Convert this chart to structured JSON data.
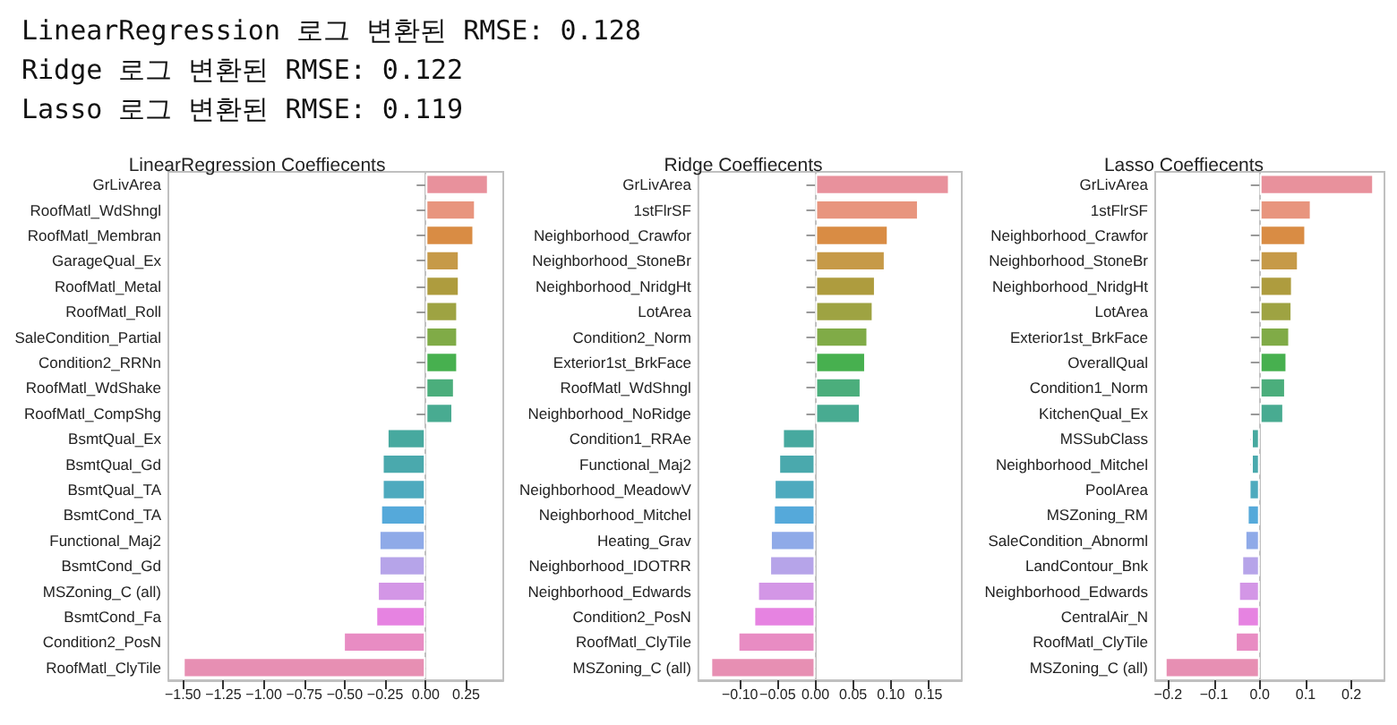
{
  "chart_data": [
    {
      "type": "other",
      "annotations": [
        "LinearRegression 로그 변환된 RMSE: 0.128",
        "Ridge 로그 변환된 RMSE: 0.122",
        "Lasso 로그 변환된 RMSE: 0.119"
      ]
    },
    {
      "type": "bar",
      "orientation": "horizontal",
      "title": "LinearRegression Coeffiecents",
      "categories": [
        "GrLivArea",
        "RoofMatl_WdShngl",
        "RoofMatl_Membran",
        "GarageQual_Ex",
        "RoofMatl_Metal",
        "RoofMatl_Roll",
        "SaleCondition_Partial",
        "Condition2_RRNn",
        "RoofMatl_WdShake",
        "RoofMatl_CompShg",
        "BsmtQual_Ex",
        "BsmtQual_Gd",
        "BsmtQual_TA",
        "BsmtCond_TA",
        "Functional_Maj2",
        "BsmtCond_Gd",
        "MSZoning_C (all)",
        "BsmtCond_Fa",
        "Condition2_PosN",
        "RoofMatl_ClyTile"
      ],
      "values": [
        0.39,
        0.31,
        0.3,
        0.21,
        0.21,
        0.2,
        0.2,
        0.2,
        0.18,
        0.17,
        -0.24,
        -0.27,
        -0.27,
        -0.28,
        -0.29,
        -0.29,
        -0.3,
        -0.31,
        -0.51,
        -1.5
      ],
      "colors": [
        "#e8919c",
        "#e8957e",
        "#d98c44",
        "#c69a48",
        "#ae9c3e",
        "#9ea342",
        "#80ab47",
        "#47b04f",
        "#4bae7c",
        "#48ab91",
        "#47a99f",
        "#4aa9ad",
        "#4eaabe",
        "#55a9da",
        "#8faae8",
        "#b6a4e9",
        "#d396e6",
        "#e683e1",
        "#e88cc3",
        "#e78fb3"
      ],
      "xlim": [
        -1.59,
        0.48
      ],
      "xticks": [
        {
          "value": -1.5,
          "label": "−1.50"
        },
        {
          "value": -1.25,
          "label": "−1.25"
        },
        {
          "value": -1,
          "label": "−1.00"
        },
        {
          "value": -0.75,
          "label": "−0.75"
        },
        {
          "value": -0.5,
          "label": "−0.50"
        },
        {
          "value": -0.25,
          "label": "−0.25"
        },
        {
          "value": 0,
          "label": "0.00"
        },
        {
          "value": 0.25,
          "label": "0.25"
        }
      ]
    },
    {
      "type": "bar",
      "orientation": "horizontal",
      "title": "Ridge Coeffiecents",
      "categories": [
        "GrLivArea",
        "1stFlrSF",
        "Neighborhood_Crawfor",
        "Neighborhood_StoneBr",
        "Neighborhood_NridgHt",
        "LotArea",
        "Condition2_Norm",
        "Exterior1st_BrkFace",
        "RoofMatl_WdShngl",
        "Neighborhood_NoRidge",
        "Condition1_RRAe",
        "Functional_Maj2",
        "Neighborhood_MeadowV",
        "Neighborhood_Mitchel",
        "Heating_Grav",
        "Neighborhood_IDOTRR",
        "Neighborhood_Edwards",
        "Condition2_PosN",
        "RoofMatl_ClyTile",
        "MSZoning_C (all)"
      ],
      "values": [
        0.178,
        0.137,
        0.097,
        0.093,
        0.08,
        0.077,
        0.07,
        0.067,
        0.061,
        0.06,
        -0.044,
        -0.049,
        -0.055,
        -0.056,
        -0.06,
        -0.061,
        -0.077,
        -0.082,
        -0.103,
        -0.139
      ],
      "colors": [
        "#e8919c",
        "#e8957e",
        "#d98c44",
        "#c69a48",
        "#ae9c3e",
        "#9ea342",
        "#80ab47",
        "#47b04f",
        "#4bae7c",
        "#48ab91",
        "#47a99f",
        "#4aa9ad",
        "#4eaabe",
        "#55a9da",
        "#8faae8",
        "#b6a4e9",
        "#d396e6",
        "#e683e1",
        "#e88cc3",
        "#e78fb3"
      ],
      "xlim": [
        -0.155,
        0.194
      ],
      "xticks": [
        {
          "value": -0.1,
          "label": "−0.10"
        },
        {
          "value": -0.05,
          "label": "−0.05"
        },
        {
          "value": 0,
          "label": "0.00"
        },
        {
          "value": 0.05,
          "label": "0.05"
        },
        {
          "value": 0.1,
          "label": "0.10"
        },
        {
          "value": 0.15,
          "label": "0.15"
        }
      ]
    },
    {
      "type": "bar",
      "orientation": "horizontal",
      "title": "Lasso Coeffiecents",
      "categories": [
        "GrLivArea",
        "1stFlrSF",
        "Neighborhood_Crawfor",
        "Neighborhood_StoneBr",
        "Neighborhood_NridgHt",
        "LotArea",
        "Exterior1st_BrkFace",
        "OverallQual",
        "Condition1_Norm",
        "KitchenQual_Ex",
        "MSSubClass",
        "Neighborhood_Mitchel",
        "PoolArea",
        "MSZoning_RM",
        "SaleCondition_Abnorml",
        "LandContour_Bnk",
        "Neighborhood_Edwards",
        "CentralAir_N",
        "RoofMatl_ClyTile",
        "MSZoning_C (all)"
      ],
      "values": [
        0.249,
        0.113,
        0.101,
        0.085,
        0.072,
        0.071,
        0.066,
        0.06,
        0.057,
        0.053,
        -0.019,
        -0.019,
        -0.024,
        -0.028,
        -0.033,
        -0.04,
        -0.047,
        -0.05,
        -0.054,
        -0.207
      ],
      "colors": [
        "#e8919c",
        "#e8957e",
        "#d98c44",
        "#c69a48",
        "#ae9c3e",
        "#9ea342",
        "#80ab47",
        "#47b04f",
        "#4bae7c",
        "#48ab91",
        "#47a99f",
        "#4aa9ad",
        "#4eaabe",
        "#55a9da",
        "#8faae8",
        "#b6a4e9",
        "#d396e6",
        "#e683e1",
        "#e88cc3",
        "#e78fb3"
      ],
      "xlim": [
        -0.228,
        0.272
      ],
      "xticks": [
        {
          "value": -0.2,
          "label": "−0.2"
        },
        {
          "value": -0.1,
          "label": "−0.1"
        },
        {
          "value": 0,
          "label": "0.0"
        },
        {
          "value": 0.1,
          "label": "0.1"
        },
        {
          "value": 0.2,
          "label": "0.2"
        }
      ]
    }
  ]
}
